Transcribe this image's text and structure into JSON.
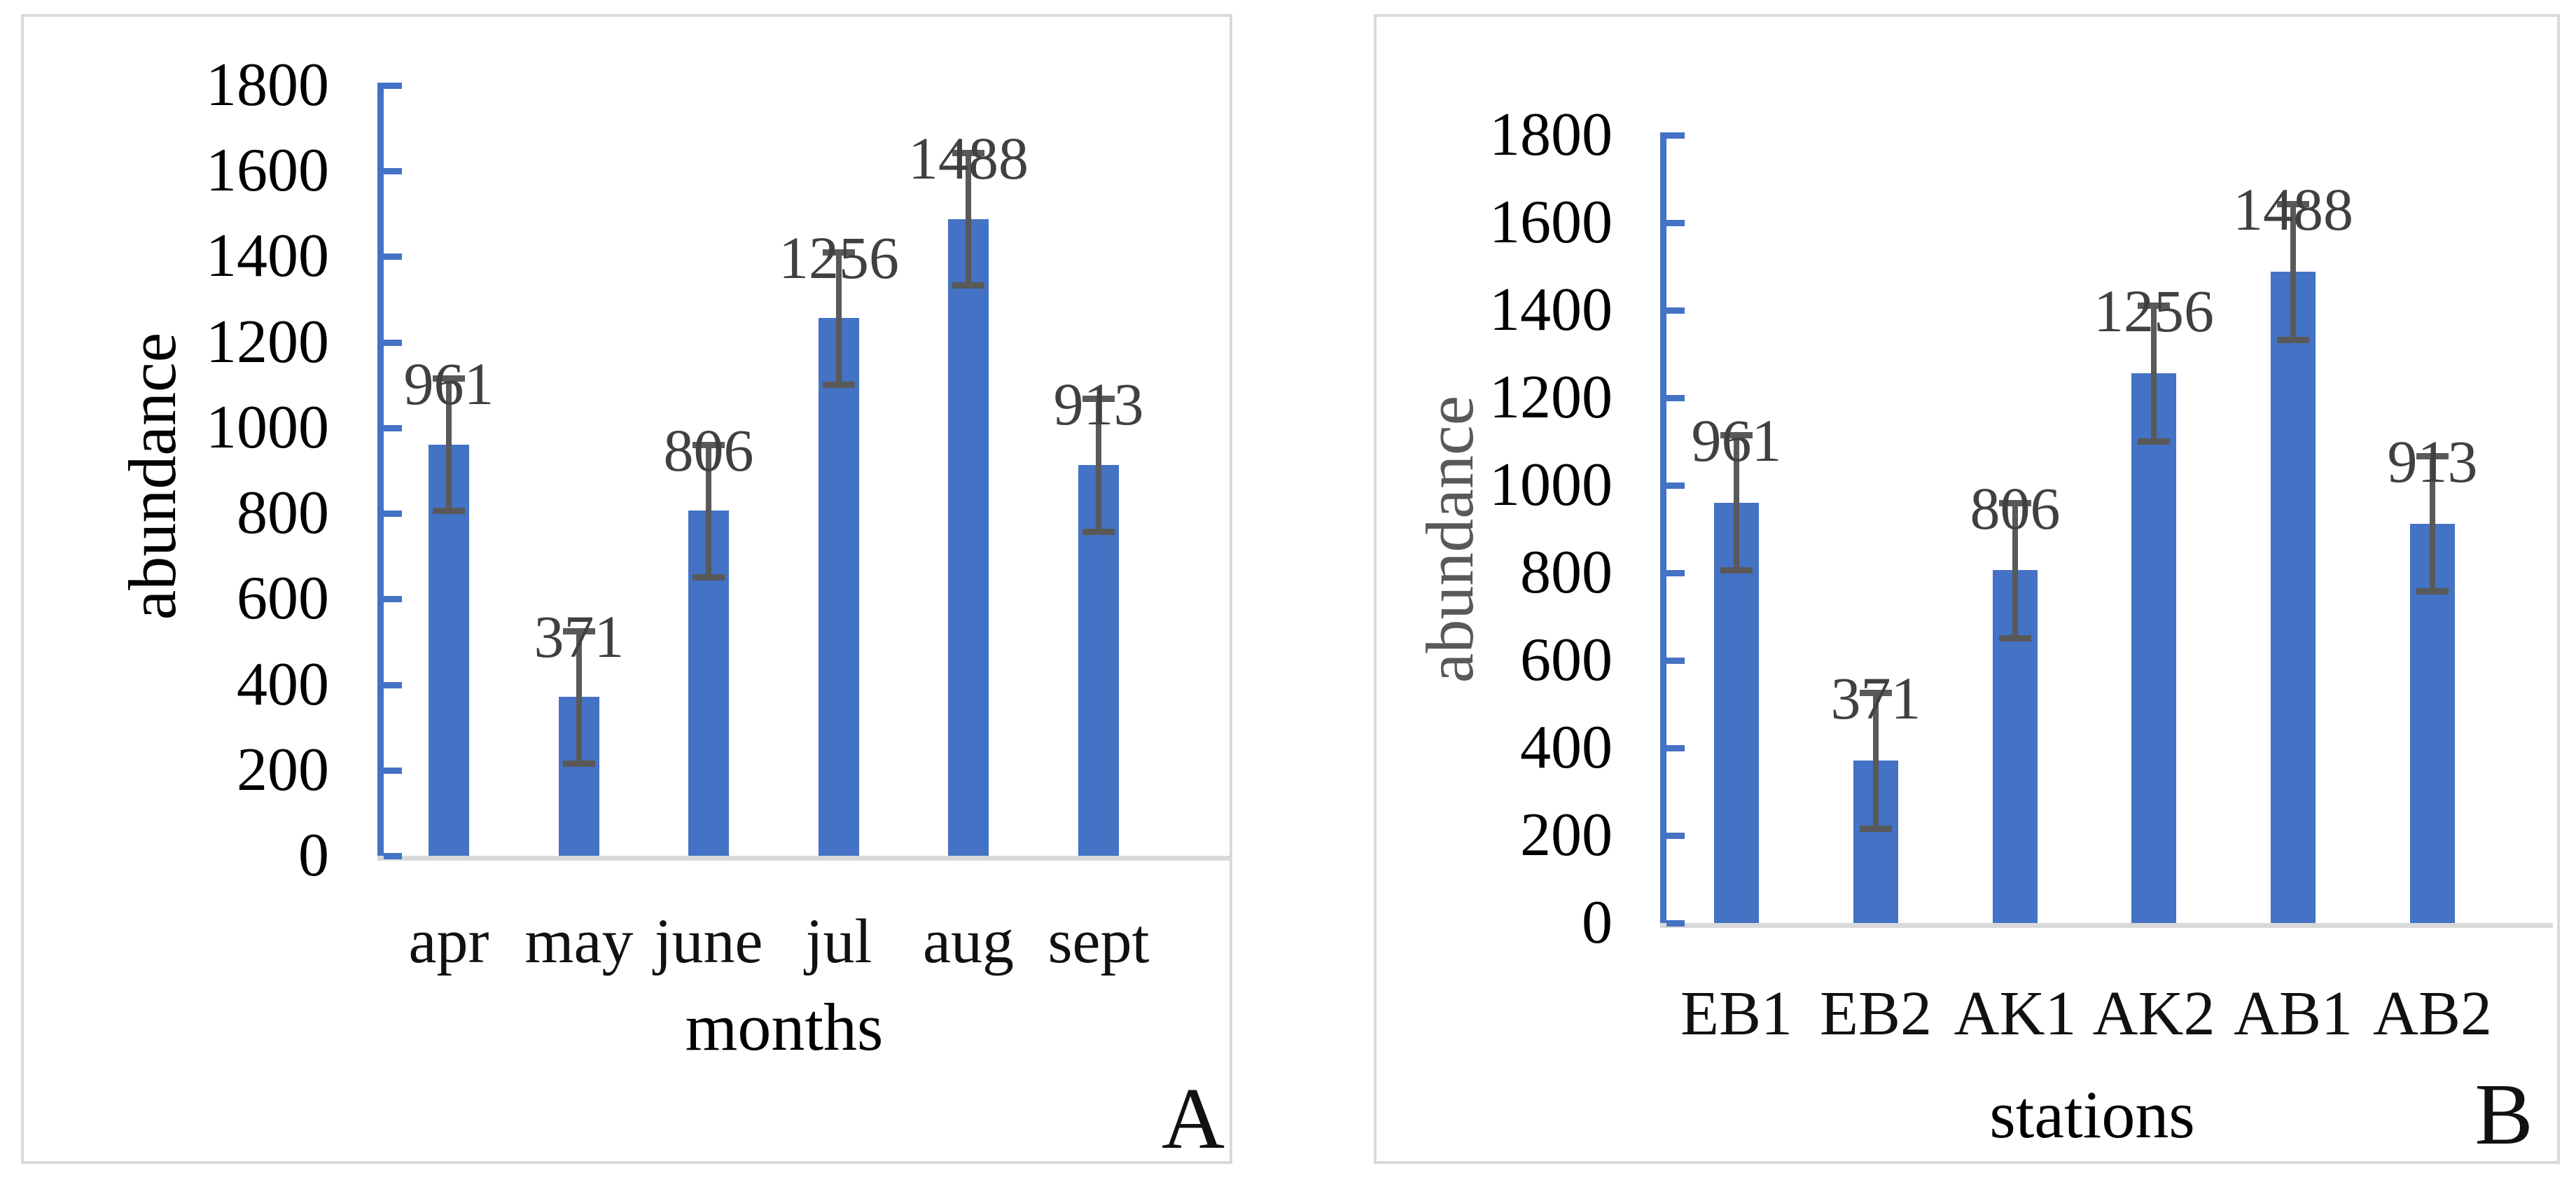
{
  "chart_data": [
    {
      "type": "bar",
      "panel_label": "A",
      "title": "",
      "xlabel": "months",
      "ylabel": "abundance",
      "categories": [
        "apr",
        "may",
        "june",
        "jul",
        "aug",
        "sept"
      ],
      "values": [
        961,
        371,
        806,
        1256,
        1488,
        913
      ],
      "data_labels": [
        "961",
        "371",
        "806",
        "1256",
        "1488",
        "913"
      ],
      "error_bar_plus_minus": 155,
      "ylim": [
        0,
        1800
      ],
      "ytick_step": 200,
      "ytick_labels": [
        "0",
        "200",
        "400",
        "600",
        "800",
        "1000",
        "1200",
        "1400",
        "1600",
        "1800"
      ],
      "grid": false,
      "legend": "none",
      "colors": {
        "bar": "#4472C4",
        "axis": "#4472C4",
        "error": "#595959",
        "data_label": "#404040",
        "tick_label": "#000000",
        "category_label": "#111111",
        "xlabel": "#000000",
        "ylabel": "#000000",
        "panel_letter": "#111111",
        "baseline": "#d9d9d9"
      }
    },
    {
      "type": "bar",
      "panel_label": "B",
      "title": "",
      "xlabel": "stations",
      "ylabel": "abundance",
      "categories": [
        "EB1",
        "EB2",
        "AK1",
        "AK2",
        "AB1",
        "AB2"
      ],
      "values": [
        961,
        371,
        806,
        1256,
        1488,
        913
      ],
      "data_labels": [
        "961",
        "371",
        "806",
        "1256",
        "1488",
        "913"
      ],
      "error_bar_plus_minus": 155,
      "ylim": [
        0,
        1800
      ],
      "ytick_step": 200,
      "ytick_labels": [
        "0",
        "200",
        "400",
        "600",
        "800",
        "1000",
        "1200",
        "1400",
        "1600",
        "1800"
      ],
      "grid": false,
      "legend": "none",
      "colors": {
        "bar": "#4472C4",
        "axis": "#4472C4",
        "error": "#595959",
        "data_label": "#404040",
        "tick_label": "#000000",
        "category_label": "#111111",
        "xlabel": "#000000",
        "ylabel": "#595959",
        "panel_letter": "#111111",
        "baseline": "#d9d9d9"
      }
    }
  ]
}
